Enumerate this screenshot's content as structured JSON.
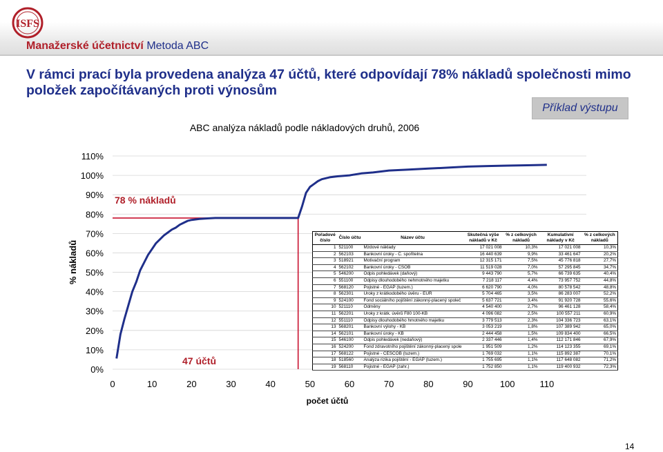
{
  "logo": {
    "text": "ISFS"
  },
  "header": {
    "title": "Manažerské účetnictví",
    "subtitle": "Metoda ABC"
  },
  "heading": "V rámci prací byla provedena analýza 47 účtů, které odpovídají 78% nákladů společnosti mimo položek započítávaných proti výnosům",
  "badge": "Příklad výstupu",
  "page_number": "14",
  "colors": {
    "title_red": "#b0202a",
    "title_blue": "#1f2f8a",
    "curve": "#1f2f8a",
    "marker": "#c8102e"
  },
  "chart_data": {
    "type": "line",
    "title": "ABC analýza nákladů podle nákladových druhů, 2006",
    "xlabel": "počet účtů",
    "ylabel": "% nákladů",
    "xlim": [
      0,
      120
    ],
    "ylim": [
      0,
      110
    ],
    "x_ticks": [
      0,
      10,
      20,
      30,
      40,
      50,
      60,
      70,
      80,
      90,
      100,
      110
    ],
    "y_ticks": [
      0,
      10,
      20,
      30,
      40,
      50,
      60,
      70,
      80,
      90,
      100,
      110
    ],
    "grid": "horizontal",
    "annotations": [
      {
        "text": "78 % nákladů",
        "x": 2,
        "y": 86
      },
      {
        "text": "47 účtů",
        "x": 18,
        "y": 5
      }
    ],
    "marker_lines": {
      "x": 47,
      "y": 78
    },
    "series": [
      {
        "x": [
          1,
          2,
          3,
          4,
          5,
          6,
          7,
          8,
          9,
          10,
          11,
          12,
          13,
          14,
          15,
          16,
          17,
          18,
          19,
          20,
          22,
          24,
          26,
          28,
          30,
          32,
          34,
          36,
          38,
          40,
          42,
          44,
          46,
          47,
          48,
          49,
          50,
          51,
          52,
          53,
          55,
          57,
          60,
          63,
          66,
          70,
          75,
          80,
          85,
          90,
          95,
          100,
          105,
          110
        ],
        "y": [
          5.5,
          18,
          26,
          33,
          40,
          45,
          51,
          55,
          59,
          62,
          65,
          67,
          69,
          70.5,
          72,
          73,
          74.5,
          75.5,
          76.5,
          77,
          77.5,
          77.8,
          78,
          78,
          78,
          78,
          78,
          78,
          78,
          78,
          78,
          78,
          78,
          78,
          84,
          91,
          94,
          95.5,
          97,
          98,
          99,
          99.5,
          100,
          101,
          101.5,
          102.5,
          103,
          103.5,
          104,
          104.5,
          104.8,
          105,
          105.2,
          105.4
        ]
      }
    ]
  },
  "table": {
    "headers": [
      "Pořadové číslo",
      "Číslo účtu",
      "Název účtu",
      "Skutečná výše nákladů v Kč",
      "% z celkových nákladů",
      "Kumulativní náklady v Kč",
      "% z celkových nákladů"
    ],
    "rows": [
      [
        "1",
        "521100",
        "Mzdové náklady",
        "17 021 008",
        "10,3%",
        "17 021 008",
        "10,3%"
      ],
      [
        "2",
        "562103",
        "Bankovní úroky - Č. spořitelna",
        "16 440 639",
        "9,9%",
        "33 461 647",
        "20,2%"
      ],
      [
        "3",
        "518921",
        "Motivační program",
        "12 315 171",
        "7,5%",
        "45 776 818",
        "27,7%"
      ],
      [
        "4",
        "562102",
        "Bankovní úroky - ČSOB",
        "11 519 028",
        "7,0%",
        "57 295 845",
        "34,7%"
      ],
      [
        "5",
        "546200",
        "Odpis pohledávek (daňový)",
        "9 443 790",
        "5,7%",
        "66 739 635",
        "40,4%"
      ],
      [
        "6",
        "551100",
        "Odpisy dlouhodobého nehmotného majetku",
        "7 218 117",
        "4,4%",
        "73 957 752",
        "44,8%"
      ],
      [
        "7",
        "568120",
        "Pojistné - EGAP (tuzem.)",
        "6 620 790",
        "4,0%",
        "80 578 542",
        "48,8%"
      ],
      [
        "8",
        "562301",
        "Úroky z krátkodobého úvěru - EUR",
        "5 704 465",
        "3,5%",
        "86 283 007",
        "52,2%"
      ],
      [
        "9",
        "524100",
        "Fond sociálního pojištění zákonný-placený společ",
        "5 637 721",
        "3,4%",
        "91 920 728",
        "55,6%"
      ],
      [
        "10",
        "521110",
        "Odměny",
        "4 540 400",
        "2,7%",
        "96 461 128",
        "58,4%"
      ],
      [
        "11",
        "562201",
        "Úroky z krátk. úvěrů F80 100-KB",
        "4 096 082",
        "2,5%",
        "100 557 211",
        "60,9%"
      ],
      [
        "12",
        "551110",
        "Odpisy dlouhodobého hmotného majetku",
        "3 779 513",
        "2,3%",
        "104 336 723",
        "63,1%"
      ],
      [
        "13",
        "568201",
        "Bankovní výlohy - KB",
        "3 053 219",
        "1,8%",
        "107 389 942",
        "65,0%"
      ],
      [
        "14",
        "562101",
        "Bankovní úroky - KB",
        "2 444 458",
        "1,5%",
        "109 834 400",
        "66,5%"
      ],
      [
        "15",
        "546100",
        "Odpis pohledávek (nedaňový)",
        "2 337 446",
        "1,4%",
        "112 171 846",
        "67,9%"
      ],
      [
        "16",
        "524200",
        "Fond zdravotního pojištění zákonný-placený spole",
        "1 951 509",
        "1,2%",
        "114 123 355",
        "69,1%"
      ],
      [
        "17",
        "568122",
        "Pojistné - ČESCOB (tuzem.)",
        "1 769 032",
        "1,1%",
        "115 892 387",
        "70,1%"
      ],
      [
        "18",
        "518560",
        "Analýza rizika pojištění - EGAP (tuzem.)",
        "1 755 695",
        "1,1%",
        "117 648 082",
        "71,2%"
      ],
      [
        "19",
        "568110",
        "Pojistné - EGAP (zahr.)",
        "1 752 850",
        "1,1%",
        "119 400 932",
        "72,3%"
      ]
    ]
  }
}
